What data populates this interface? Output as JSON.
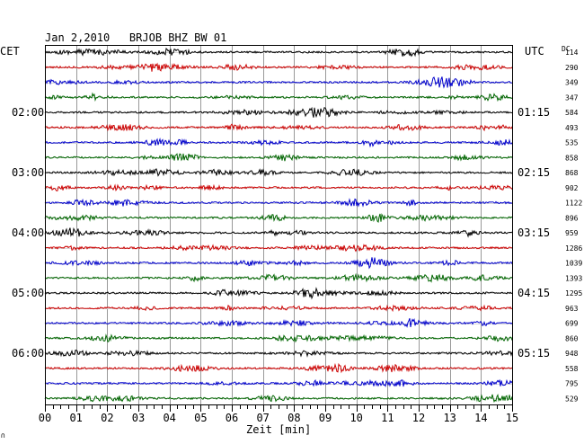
{
  "header": {
    "title": "Jan 2,2010   BRJOB BHZ BW 01",
    "left_tz": "CET",
    "right_tz": "UTC",
    "dc_label": "DC"
  },
  "footer": {
    "xlabel": "Zeit [min]",
    "corner_mark": "∩"
  },
  "chart_data": {
    "type": "line",
    "title": "Jan 2,2010   BRJOB BHZ BW 01",
    "xlabel": "Zeit [min]",
    "xlim": [
      0,
      15
    ],
    "x_ticks": [
      "00",
      "01",
      "02",
      "03",
      "04",
      "05",
      "06",
      "07",
      "08",
      "09",
      "10",
      "11",
      "12",
      "13",
      "14",
      "15"
    ],
    "grid": true,
    "trace_colors": [
      "#000000",
      "#cc0000",
      "#0000cc",
      "#006600"
    ],
    "traces_per_hour": 4,
    "minutes_per_trace": 15,
    "cet_hour_labels": [
      {
        "trace_index": 4,
        "text": "02:00"
      },
      {
        "trace_index": 8,
        "text": "03:00"
      },
      {
        "trace_index": 12,
        "text": "04:00"
      },
      {
        "trace_index": 16,
        "text": "05:00"
      },
      {
        "trace_index": 20,
        "text": "06:00"
      }
    ],
    "utc_time_labels": [
      {
        "trace_index": 4,
        "text": "01:15"
      },
      {
        "trace_index": 8,
        "text": "02:15"
      },
      {
        "trace_index": 12,
        "text": "03:15"
      },
      {
        "trace_index": 16,
        "text": "04:15"
      },
      {
        "trace_index": 20,
        "text": "05:15"
      }
    ],
    "dc_offsets": [
      114,
      290,
      349,
      347,
      584,
      493,
      535,
      858,
      868,
      902,
      1122,
      896,
      959,
      1286,
      1039,
      1393,
      1295,
      963,
      699,
      860,
      948,
      558,
      795,
      529
    ]
  }
}
